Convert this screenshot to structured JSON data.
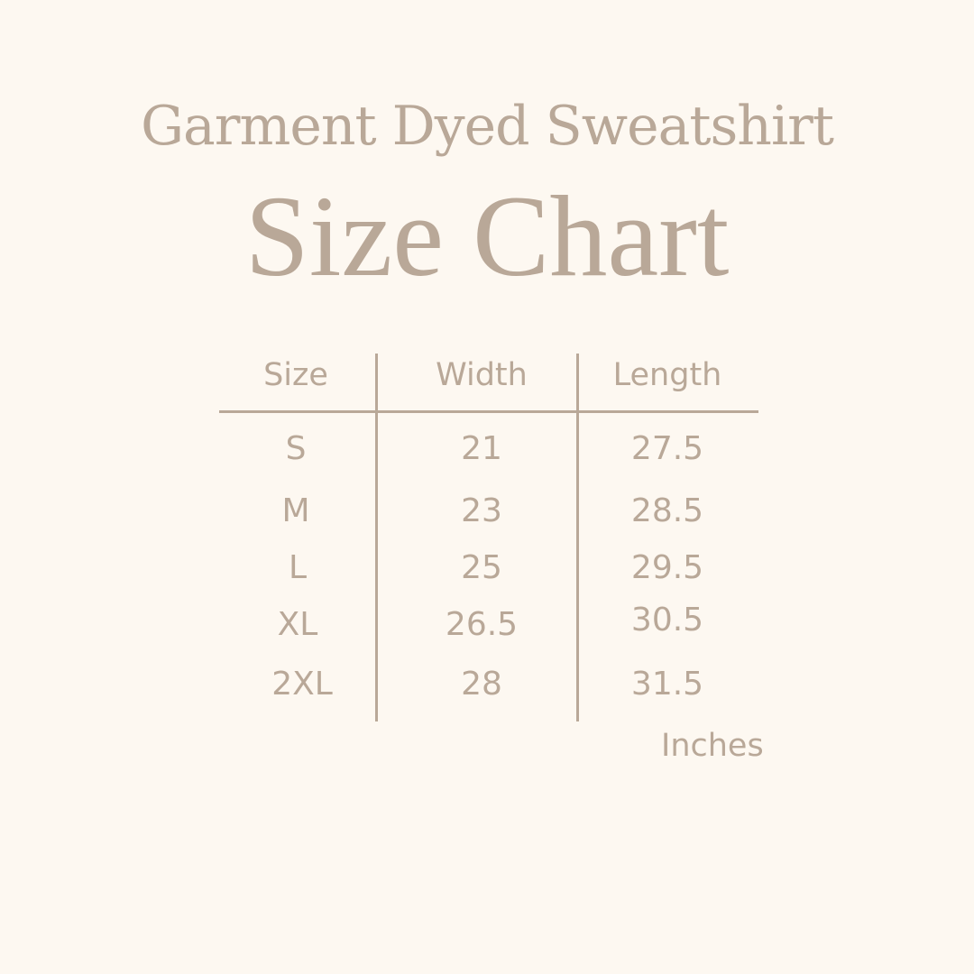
{
  "title": {
    "line1": "Garment Dyed Sweatshirt",
    "line2": "Size Chart"
  },
  "colors": {
    "background": "#fdf8f1",
    "text": "#b9a898"
  },
  "table": {
    "headers": [
      "Size",
      "Width",
      "Length"
    ],
    "rows": [
      [
        "S",
        "21",
        "27.5"
      ],
      [
        "M",
        "23",
        "28.5"
      ],
      [
        "L",
        "25",
        "29.5"
      ],
      [
        "XL",
        "26.5",
        "30.5"
      ],
      [
        "2XL",
        "28",
        "31.5"
      ]
    ],
    "unit": "Inches"
  }
}
